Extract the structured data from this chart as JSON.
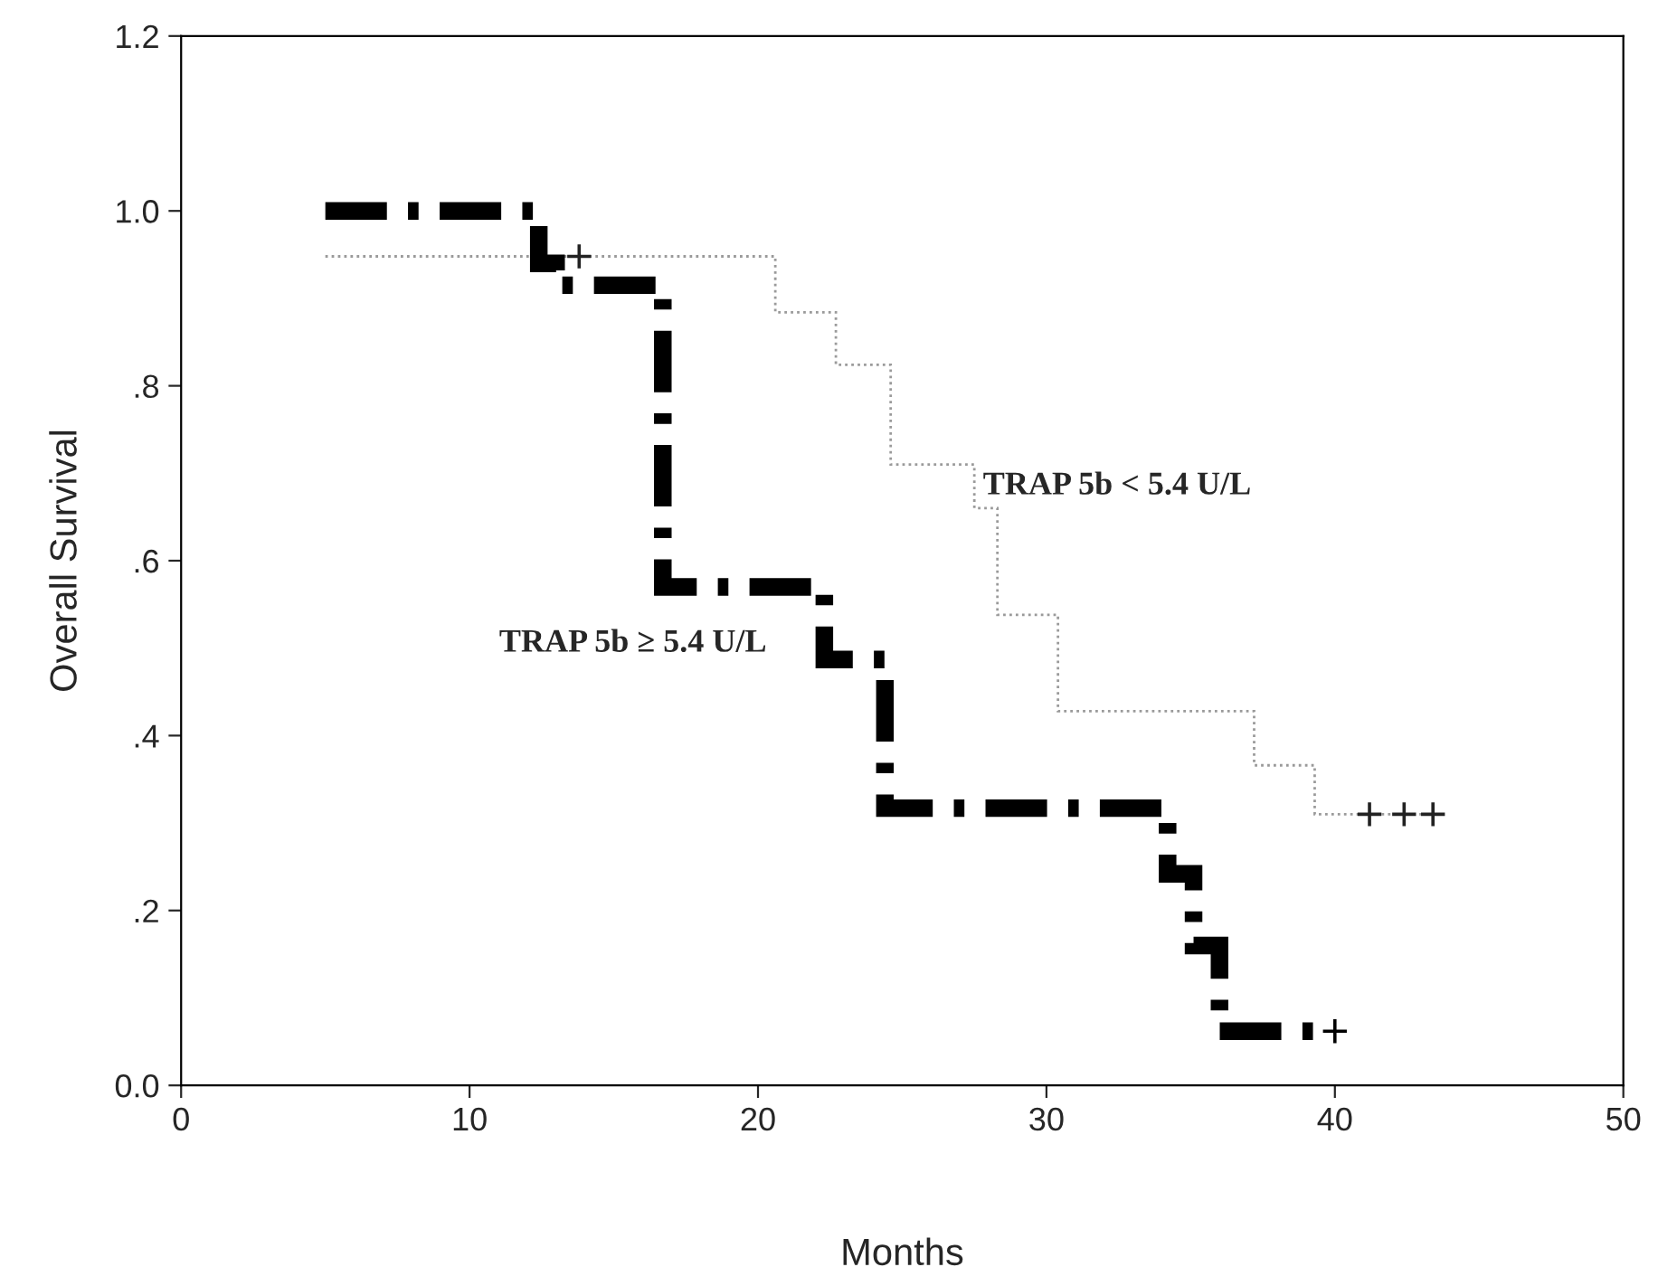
{
  "chart_data": {
    "type": "step",
    "xlabel": "Months",
    "ylabel": "Overall Survival",
    "xlim": [
      0,
      50
    ],
    "xticks": [
      0,
      10,
      20,
      30,
      40,
      50
    ],
    "ylim": [
      0,
      1.2
    ],
    "yticks": [
      {
        "value": 0,
        "label": "0.0"
      },
      {
        "value": 0.2,
        "label": ".2"
      },
      {
        "value": 0.4,
        "label": ".4"
      },
      {
        "value": 0.6,
        "label": ".6"
      },
      {
        "value": 0.8,
        "label": ".8"
      },
      {
        "value": 1.0,
        "label": "1.0"
      },
      {
        "value": 1.2,
        "label": "1.2"
      }
    ],
    "grid": false,
    "legend": false,
    "series": [
      {
        "name": "TRAP 5b < 5.4 U/L",
        "color": "#9a9a9a",
        "line_style": "dotted",
        "x": [
          5,
          20.6,
          22.7,
          24.6,
          27.5,
          28.3,
          30.4,
          37.2,
          39.3,
          43.4
        ],
        "values": [
          0.948,
          0.884,
          0.824,
          0.71,
          0.66,
          0.538,
          0.428,
          0.366,
          0.31,
          0.31
        ]
      },
      {
        "type": "scatter",
        "color": "#222222",
        "marker": "cross",
        "x": [
          13.8,
          41.2,
          42.4,
          43.4
        ],
        "values": [
          0.948,
          0.31,
          0.31,
          0.31
        ]
      },
      {
        "name": "TRAP 5b ≥ 5.4 U/L",
        "color": "#000000",
        "line_style": "dashdot",
        "x": [
          5,
          12.4,
          13.0,
          16.7,
          22.3,
          24.4,
          34.2,
          35.1,
          36.0,
          39.5
        ],
        "values": [
          1.0,
          0.94,
          0.915,
          0.57,
          0.487,
          0.317,
          0.242,
          0.16,
          0.062,
          0.062
        ]
      },
      {
        "type": "scatter",
        "color": "#000000",
        "marker": "cross",
        "x": [
          40.0
        ],
        "values": [
          0.062
        ]
      }
    ]
  }
}
